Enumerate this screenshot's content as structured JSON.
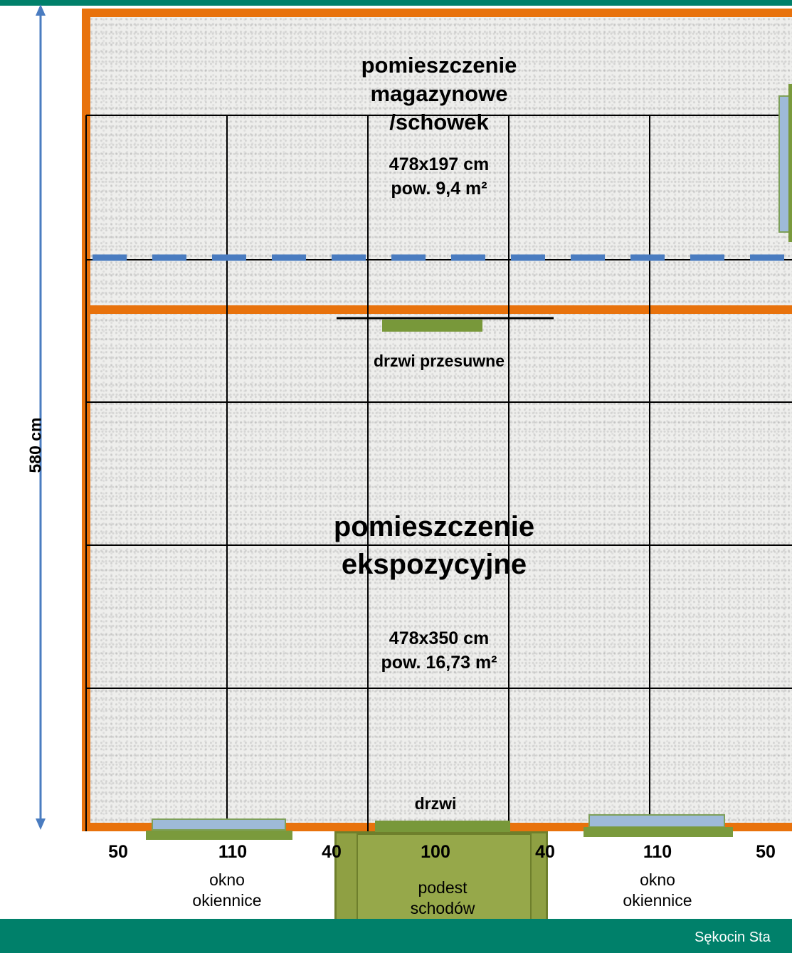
{
  "storage_room": {
    "title_line1": "pomieszczenie",
    "title_line2": "magazynowe",
    "title_line3": "/schowek",
    "dims": "478x197 cm",
    "area": "pow. 9,4 m²"
  },
  "exhibition_room": {
    "title_line1": "pomieszczenie",
    "title_line2": "ekspozycyjne",
    "dims": "478x350 cm",
    "area": "pow. 16,73 m²"
  },
  "sliding_door_label": "drzwi przesuwne",
  "door_label": "drzwi",
  "height_label": "580 cm",
  "bottom_dimensions": [
    "50",
    "110",
    "40",
    "100",
    "40",
    "110",
    "50"
  ],
  "left_window": {
    "line1": "okno",
    "line2": "okiennice"
  },
  "right_window": {
    "line1": "okno",
    "line2": "okiennice"
  },
  "landing": {
    "line1": "podest",
    "line2": "schodów"
  },
  "footer": "Sękocin Sta",
  "colors": {
    "wall": "#e8720c",
    "band": "#00806a",
    "window_glass": "#9ebad8",
    "door_green": "#78983a",
    "dimension_arrow": "#4a7cc0"
  }
}
